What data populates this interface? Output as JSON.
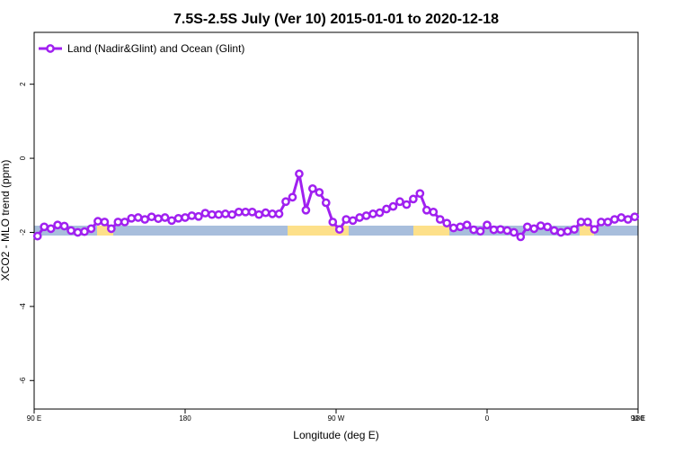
{
  "chart_data": {
    "type": "line",
    "title": "7.5S-2.5S July (Ver 10)   2015-01-01 to 2020-12-18",
    "x_label": "Longitude (deg E)",
    "y_label": "XCO2 - MLO trend (ppm)",
    "x": [
      92,
      96,
      100,
      104,
      108,
      112,
      116,
      120,
      124,
      128,
      132,
      136,
      140,
      144,
      148,
      152,
      156,
      160,
      164,
      168,
      172,
      176,
      180,
      184,
      188,
      192,
      196,
      200,
      204,
      208,
      212,
      216,
      220,
      224,
      228,
      232,
      236,
      240,
      244,
      248,
      252,
      256,
      260,
      264,
      268,
      272,
      276,
      280,
      284,
      288,
      292,
      296,
      300,
      304,
      308,
      312,
      316,
      320,
      324,
      328,
      332,
      336,
      340,
      344,
      348,
      352,
      356,
      360,
      364,
      368,
      372,
      376,
      380,
      384,
      388,
      392,
      396,
      400,
      404,
      408,
      412,
      416,
      420,
      424,
      428,
      432,
      436,
      440,
      444,
      448
    ],
    "series": [
      {
        "name": "Land (Nadir&Glint) and Ocean (Glint)",
        "color": "#a020f0",
        "values": [
          -2.1,
          -1.85,
          -1.9,
          -1.8,
          -1.83,
          -1.95,
          -2.0,
          -1.98,
          -1.9,
          -1.7,
          -1.72,
          -1.9,
          -1.72,
          -1.72,
          -1.62,
          -1.6,
          -1.65,
          -1.58,
          -1.63,
          -1.6,
          -1.68,
          -1.62,
          -1.6,
          -1.55,
          -1.57,
          -1.48,
          -1.52,
          -1.52,
          -1.5,
          -1.52,
          -1.45,
          -1.45,
          -1.45,
          -1.52,
          -1.47,
          -1.5,
          -1.5,
          -1.17,
          -1.05,
          -0.42,
          -1.4,
          -0.82,
          -0.92,
          -1.2,
          -1.72,
          -1.92,
          -1.65,
          -1.68,
          -1.6,
          -1.55,
          -1.5,
          -1.47,
          -1.37,
          -1.3,
          -1.17,
          -1.25,
          -1.1,
          -0.95,
          -1.4,
          -1.45,
          -1.65,
          -1.75,
          -1.88,
          -1.85,
          -1.8,
          -1.93,
          -1.97,
          -1.8,
          -1.93,
          -1.92,
          -1.95,
          -2.0,
          -2.12,
          -1.85,
          -1.9,
          -1.82,
          -1.85,
          -1.95,
          -2.0,
          -1.97,
          -1.92,
          -1.72,
          -1.72,
          -1.92,
          -1.72,
          -1.72,
          -1.65,
          -1.6,
          -1.65,
          -1.58
        ]
      }
    ],
    "xlim": [
      90,
      450
    ],
    "xticks": [
      {
        "value": 90,
        "label": "90 E"
      },
      180,
      {
        "value": 270,
        "label": "90 W"
      },
      {
        "value": 360,
        "label": "0"
      },
      {
        "value": 450,
        "label": "90 E"
      },
      {
        "value": 540,
        "label": "180"
      }
    ],
    "ylim": [
      -6.77,
      3.4
    ],
    "yticks": [
      2,
      0,
      -2,
      -4,
      -6
    ],
    "legend": "top-left"
  }
}
